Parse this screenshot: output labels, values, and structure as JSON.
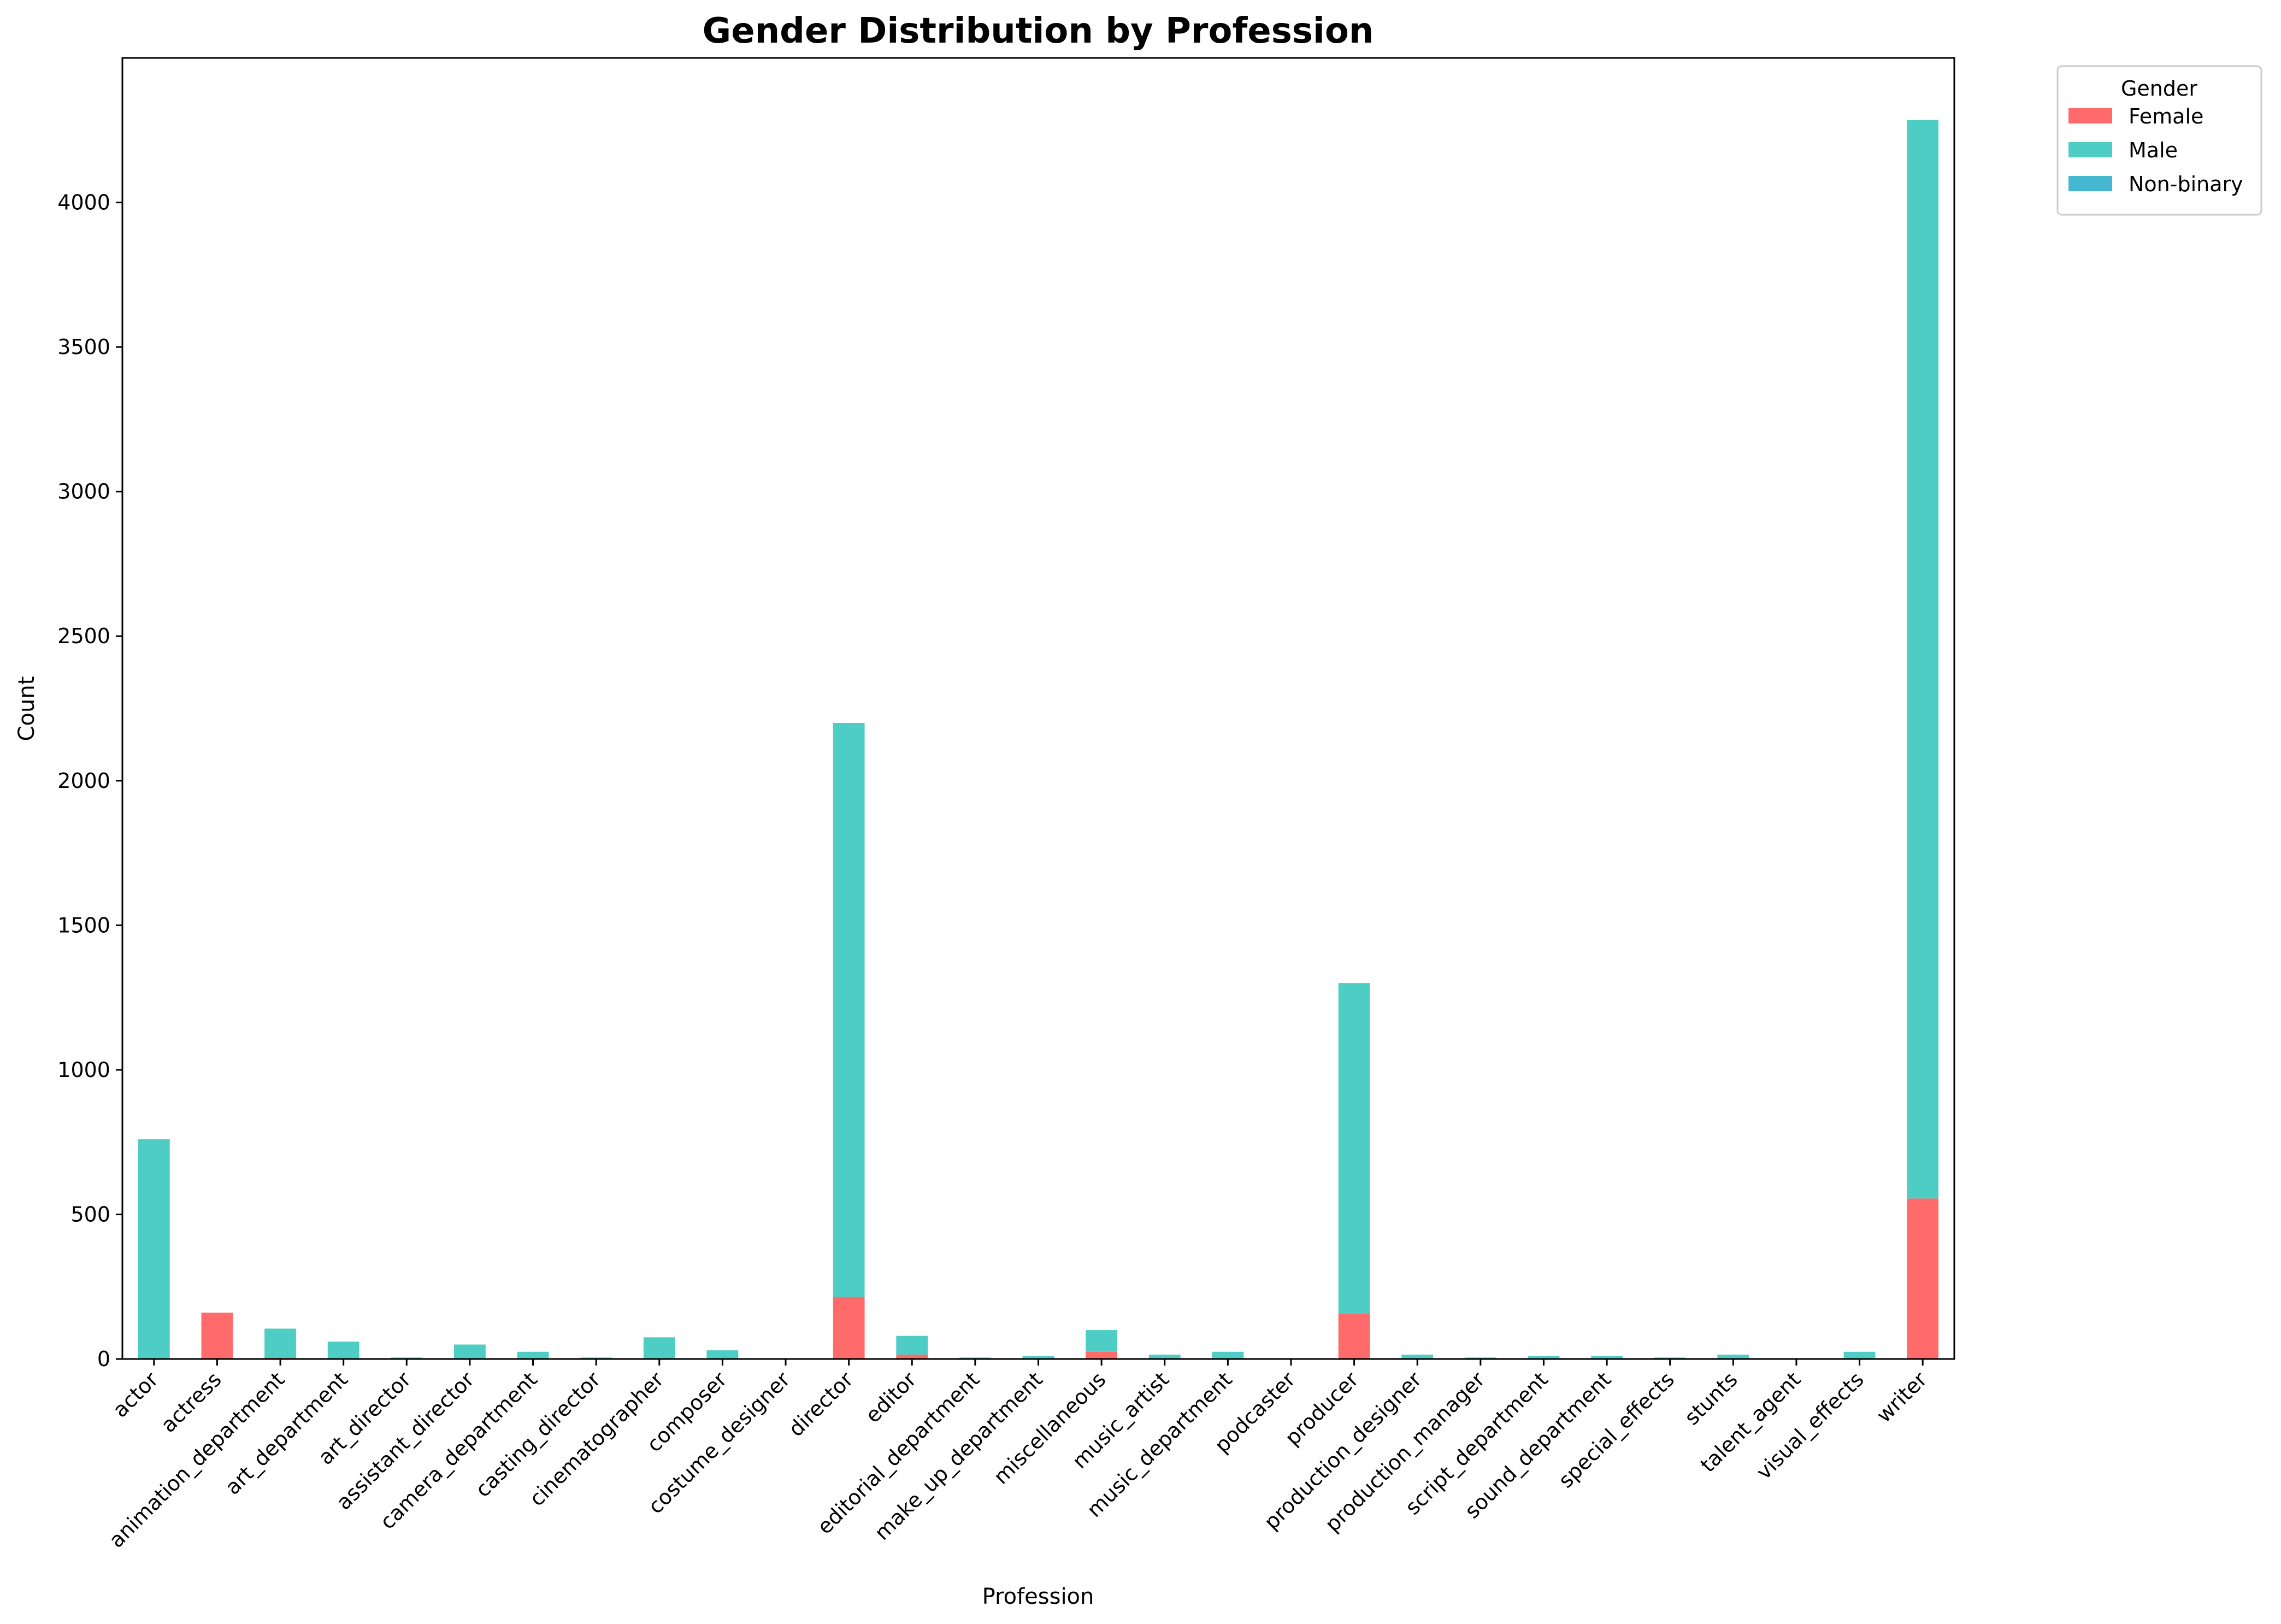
{
  "chart_data": {
    "type": "bar",
    "stacked": true,
    "title": "Gender Distribution by Profession",
    "xlabel": "Profession",
    "ylabel": "Count",
    "ylim": [
      0,
      4500
    ],
    "yticks": [
      0,
      500,
      1000,
      1500,
      2000,
      2500,
      3000,
      3500,
      4000
    ],
    "grid": false,
    "legend": {
      "title": "Gender",
      "placement": "outside-top-right"
    },
    "categories": [
      "actor",
      "actress",
      "animation_department",
      "art_department",
      "art_director",
      "assistant_director",
      "camera_department",
      "casting_director",
      "cinematographer",
      "composer",
      "costume_designer",
      "director",
      "editor",
      "editorial_department",
      "make_up_department",
      "miscellaneous",
      "music_artist",
      "music_department",
      "podcaster",
      "producer",
      "production_designer",
      "production_manager",
      "script_department",
      "sound_department",
      "special_effects",
      "stunts",
      "talent_agent",
      "visual_effects",
      "writer"
    ],
    "series": [
      {
        "name": "Female",
        "color": "#ff6b6b",
        "values": [
          0,
          160,
          5,
          0,
          0,
          0,
          0,
          0,
          0,
          0,
          0,
          215,
          15,
          0,
          0,
          25,
          0,
          0,
          0,
          155,
          0,
          0,
          0,
          0,
          0,
          0,
          0,
          0,
          555
        ]
      },
      {
        "name": "Male",
        "color": "#4ecdc4",
        "values": [
          760,
          0,
          100,
          60,
          5,
          50,
          25,
          5,
          75,
          30,
          0,
          1985,
          65,
          5,
          10,
          75,
          15,
          25,
          0,
          1145,
          15,
          5,
          10,
          10,
          5,
          15,
          0,
          25,
          3730
        ]
      },
      {
        "name": "Non-binary",
        "color": "#45b7d1",
        "values": [
          0,
          0,
          0,
          0,
          0,
          0,
          0,
          0,
          0,
          0,
          0,
          0,
          0,
          0,
          0,
          0,
          0,
          0,
          0,
          0,
          0,
          0,
          0,
          0,
          0,
          0,
          0,
          0,
          0
        ]
      }
    ]
  }
}
